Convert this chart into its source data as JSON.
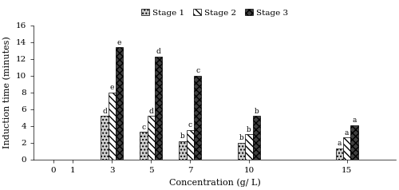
{
  "bar_positions": [
    3,
    5,
    7,
    10,
    15
  ],
  "stage1_values": [
    5.2,
    3.3,
    2.2,
    2.0,
    1.3
  ],
  "stage2_values": [
    8.0,
    5.2,
    3.5,
    3.0,
    2.6
  ],
  "stage3_values": [
    13.4,
    12.3,
    10.0,
    5.2,
    4.1
  ],
  "stage1_labels": [
    "d",
    "c",
    "b",
    "b",
    "a"
  ],
  "stage2_labels": [
    "e",
    "d",
    "c",
    "b",
    "a"
  ],
  "stage3_labels": [
    "e",
    "d",
    "c",
    "b",
    "a"
  ],
  "bar_width": 0.38,
  "ylabel": "Induction time (minutes)",
  "xlabel": "Concentration (g/ L)",
  "ylim": [
    0,
    16
  ],
  "yticks": [
    0,
    2,
    4,
    6,
    8,
    10,
    12,
    14,
    16
  ],
  "xticks": [
    0,
    1,
    3,
    5,
    7,
    10,
    15
  ],
  "legend_labels": [
    "Stage 1",
    "Stage 2",
    "Stage 3"
  ],
  "stage1_hatch": "....",
  "stage2_hatch": "\\\\\\\\",
  "stage3_hatch": "xxxx",
  "stage1_facecolor": "#d0d0d0",
  "stage2_facecolor": "#ffffff",
  "stage3_facecolor": "#404040",
  "bar_edgecolor": "#000000",
  "annotation_fontsize": 6.5,
  "axis_fontsize": 8,
  "legend_fontsize": 7.5,
  "tick_fontsize": 7.5
}
